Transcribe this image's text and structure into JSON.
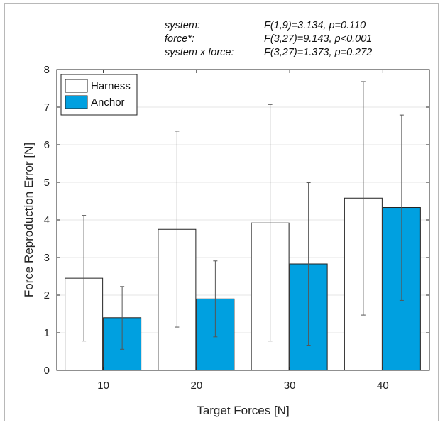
{
  "stats": [
    {
      "term": "system:",
      "value": "F(1,9)=3.134, p=0.110"
    },
    {
      "term": "force*:",
      "value": "F(3,27)=9.143, p<0.001"
    },
    {
      "term": "system x force:",
      "value": "F(3,27)=1.373, p=0.272"
    }
  ],
  "chart_data": {
    "type": "bar",
    "categories": [
      "10",
      "20",
      "30",
      "40"
    ],
    "series": [
      {
        "name": "Harness",
        "color": "#ffffff",
        "values": [
          2.45,
          3.75,
          3.92,
          4.58
        ],
        "err_low": [
          0.78,
          1.15,
          0.78,
          1.47
        ],
        "err_high": [
          4.12,
          6.36,
          7.07,
          7.68
        ]
      },
      {
        "name": "Anchor",
        "color": "#00a0e0",
        "values": [
          1.4,
          1.9,
          2.83,
          4.33
        ],
        "err_low": [
          0.56,
          0.89,
          0.67,
          1.86
        ],
        "err_high": [
          2.23,
          2.91,
          4.99,
          6.79
        ]
      }
    ],
    "xlabel": "Target Forces [N]",
    "ylabel": "Force Reproduction Error [N]",
    "ylim": [
      0,
      8
    ],
    "yticks": [
      0,
      1,
      2,
      3,
      4,
      5,
      6,
      7,
      8
    ],
    "grid": true,
    "legend_position": "top-left"
  }
}
